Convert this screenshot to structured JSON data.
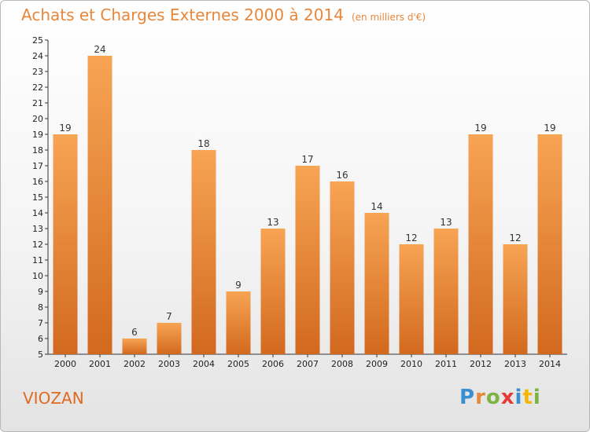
{
  "header": {
    "title": "Achats et Charges Externes 2000 à 2014",
    "unit": "(en milliers d'€)"
  },
  "footer": {
    "commune": "VIOZAN",
    "logo_text": "Proxiti",
    "logo_colors": [
      "#3a8fd0",
      "#e8873a",
      "#7cb342",
      "#e53935",
      "#3a8fd0",
      "#f2b705",
      "#7cb342"
    ]
  },
  "chart_data": {
    "type": "bar",
    "title": "Achats et Charges Externes 2000 à 2014",
    "subtitle": "(en milliers d'€)",
    "xlabel": "",
    "ylabel": "",
    "categories": [
      "2000",
      "2001",
      "2002",
      "2003",
      "2004",
      "2005",
      "2006",
      "2007",
      "2008",
      "2009",
      "2010",
      "2011",
      "2012",
      "2013",
      "2014"
    ],
    "values": [
      19,
      24,
      6,
      7,
      18,
      9,
      13,
      17,
      16,
      14,
      12,
      13,
      19,
      12,
      19
    ],
    "ylim": [
      5,
      25
    ],
    "yticks": [
      5,
      6,
      7,
      8,
      9,
      10,
      11,
      12,
      13,
      14,
      15,
      16,
      17,
      18,
      19,
      20,
      21,
      22,
      23,
      24,
      25
    ],
    "data_labels": true,
    "grid": false,
    "bar_color": "#f0953f"
  }
}
